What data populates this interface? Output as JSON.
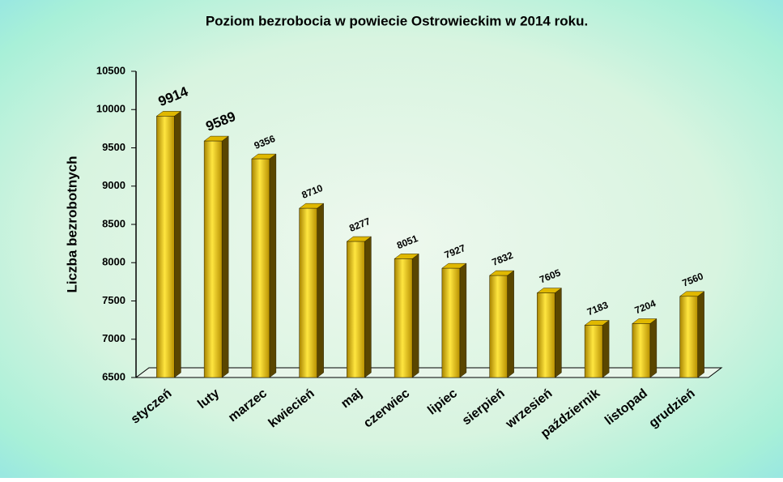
{
  "chart_data": {
    "type": "bar",
    "title": "Poziom bezrobocia w powiecie Ostrowieckim w  2014 roku.",
    "y_label": "Liczba bezrobotnych",
    "categories": [
      "styczeń",
      "luty",
      "marzec",
      "kwiecień",
      "maj",
      "czerwiec",
      "lipiec",
      "sierpień",
      "wrzesień",
      "październik",
      "listopad",
      "grudzień"
    ],
    "values": [
      9914,
      9589,
      9356,
      8710,
      8277,
      8051,
      7927,
      7832,
      7605,
      7183,
      7204,
      7560
    ],
    "color": "#e0b800",
    "ylim": [
      6500,
      10500
    ],
    "yticks": [
      6500,
      7000,
      7500,
      8000,
      8500,
      9000,
      9500,
      10000,
      10500
    ],
    "grid": false
  }
}
